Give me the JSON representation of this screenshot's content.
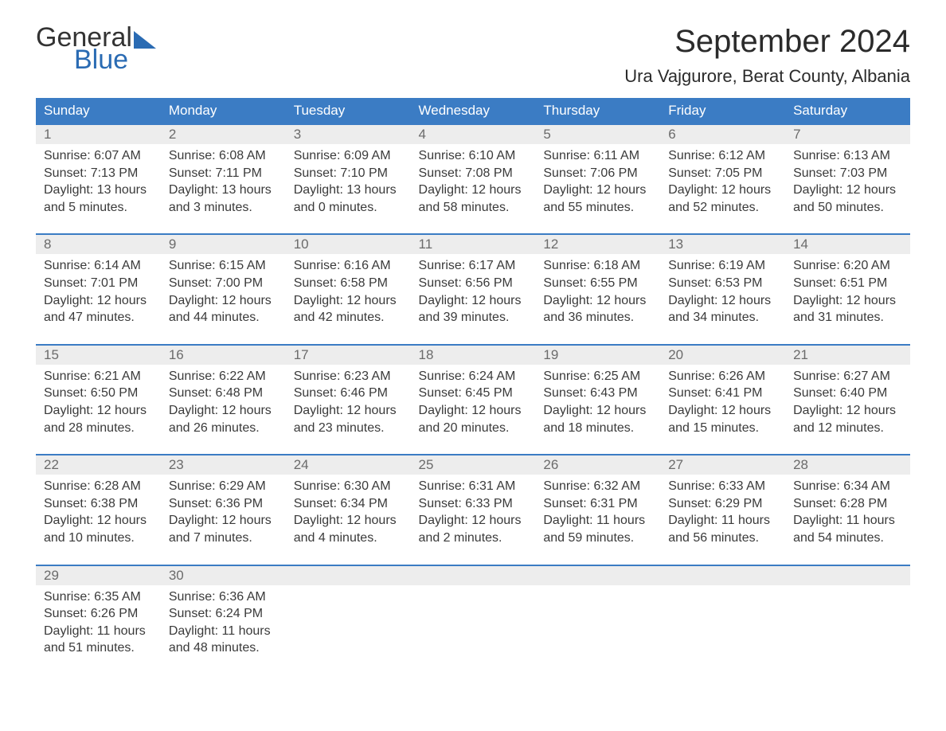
{
  "logo": {
    "word1": "General",
    "word2": "Blue",
    "text_color": "#333333",
    "accent_color": "#2a6bb3"
  },
  "header": {
    "month_title": "September 2024",
    "location": "Ura Vajgurore, Berat County, Albania",
    "title_color": "#2b2b2b",
    "title_fontsize": 40,
    "location_fontsize": 22
  },
  "calendar": {
    "header_bg": "#3b7cc4",
    "header_text_color": "#ffffff",
    "daynum_bg": "#ededed",
    "daynum_border": "#3b7cc4",
    "daynum_color": "#6b6b6b",
    "body_text_color": "#3a3a3a",
    "body_fontsize": 16,
    "days_of_week": [
      "Sunday",
      "Monday",
      "Tuesday",
      "Wednesday",
      "Thursday",
      "Friday",
      "Saturday"
    ],
    "weeks": [
      [
        {
          "num": "1",
          "sunrise": "Sunrise: 6:07 AM",
          "sunset": "Sunset: 7:13 PM",
          "daylight1": "Daylight: 13 hours",
          "daylight2": "and 5 minutes."
        },
        {
          "num": "2",
          "sunrise": "Sunrise: 6:08 AM",
          "sunset": "Sunset: 7:11 PM",
          "daylight1": "Daylight: 13 hours",
          "daylight2": "and 3 minutes."
        },
        {
          "num": "3",
          "sunrise": "Sunrise: 6:09 AM",
          "sunset": "Sunset: 7:10 PM",
          "daylight1": "Daylight: 13 hours",
          "daylight2": "and 0 minutes."
        },
        {
          "num": "4",
          "sunrise": "Sunrise: 6:10 AM",
          "sunset": "Sunset: 7:08 PM",
          "daylight1": "Daylight: 12 hours",
          "daylight2": "and 58 minutes."
        },
        {
          "num": "5",
          "sunrise": "Sunrise: 6:11 AM",
          "sunset": "Sunset: 7:06 PM",
          "daylight1": "Daylight: 12 hours",
          "daylight2": "and 55 minutes."
        },
        {
          "num": "6",
          "sunrise": "Sunrise: 6:12 AM",
          "sunset": "Sunset: 7:05 PM",
          "daylight1": "Daylight: 12 hours",
          "daylight2": "and 52 minutes."
        },
        {
          "num": "7",
          "sunrise": "Sunrise: 6:13 AM",
          "sunset": "Sunset: 7:03 PM",
          "daylight1": "Daylight: 12 hours",
          "daylight2": "and 50 minutes."
        }
      ],
      [
        {
          "num": "8",
          "sunrise": "Sunrise: 6:14 AM",
          "sunset": "Sunset: 7:01 PM",
          "daylight1": "Daylight: 12 hours",
          "daylight2": "and 47 minutes."
        },
        {
          "num": "9",
          "sunrise": "Sunrise: 6:15 AM",
          "sunset": "Sunset: 7:00 PM",
          "daylight1": "Daylight: 12 hours",
          "daylight2": "and 44 minutes."
        },
        {
          "num": "10",
          "sunrise": "Sunrise: 6:16 AM",
          "sunset": "Sunset: 6:58 PM",
          "daylight1": "Daylight: 12 hours",
          "daylight2": "and 42 minutes."
        },
        {
          "num": "11",
          "sunrise": "Sunrise: 6:17 AM",
          "sunset": "Sunset: 6:56 PM",
          "daylight1": "Daylight: 12 hours",
          "daylight2": "and 39 minutes."
        },
        {
          "num": "12",
          "sunrise": "Sunrise: 6:18 AM",
          "sunset": "Sunset: 6:55 PM",
          "daylight1": "Daylight: 12 hours",
          "daylight2": "and 36 minutes."
        },
        {
          "num": "13",
          "sunrise": "Sunrise: 6:19 AM",
          "sunset": "Sunset: 6:53 PM",
          "daylight1": "Daylight: 12 hours",
          "daylight2": "and 34 minutes."
        },
        {
          "num": "14",
          "sunrise": "Sunrise: 6:20 AM",
          "sunset": "Sunset: 6:51 PM",
          "daylight1": "Daylight: 12 hours",
          "daylight2": "and 31 minutes."
        }
      ],
      [
        {
          "num": "15",
          "sunrise": "Sunrise: 6:21 AM",
          "sunset": "Sunset: 6:50 PM",
          "daylight1": "Daylight: 12 hours",
          "daylight2": "and 28 minutes."
        },
        {
          "num": "16",
          "sunrise": "Sunrise: 6:22 AM",
          "sunset": "Sunset: 6:48 PM",
          "daylight1": "Daylight: 12 hours",
          "daylight2": "and 26 minutes."
        },
        {
          "num": "17",
          "sunrise": "Sunrise: 6:23 AM",
          "sunset": "Sunset: 6:46 PM",
          "daylight1": "Daylight: 12 hours",
          "daylight2": "and 23 minutes."
        },
        {
          "num": "18",
          "sunrise": "Sunrise: 6:24 AM",
          "sunset": "Sunset: 6:45 PM",
          "daylight1": "Daylight: 12 hours",
          "daylight2": "and 20 minutes."
        },
        {
          "num": "19",
          "sunrise": "Sunrise: 6:25 AM",
          "sunset": "Sunset: 6:43 PM",
          "daylight1": "Daylight: 12 hours",
          "daylight2": "and 18 minutes."
        },
        {
          "num": "20",
          "sunrise": "Sunrise: 6:26 AM",
          "sunset": "Sunset: 6:41 PM",
          "daylight1": "Daylight: 12 hours",
          "daylight2": "and 15 minutes."
        },
        {
          "num": "21",
          "sunrise": "Sunrise: 6:27 AM",
          "sunset": "Sunset: 6:40 PM",
          "daylight1": "Daylight: 12 hours",
          "daylight2": "and 12 minutes."
        }
      ],
      [
        {
          "num": "22",
          "sunrise": "Sunrise: 6:28 AM",
          "sunset": "Sunset: 6:38 PM",
          "daylight1": "Daylight: 12 hours",
          "daylight2": "and 10 minutes."
        },
        {
          "num": "23",
          "sunrise": "Sunrise: 6:29 AM",
          "sunset": "Sunset: 6:36 PM",
          "daylight1": "Daylight: 12 hours",
          "daylight2": "and 7 minutes."
        },
        {
          "num": "24",
          "sunrise": "Sunrise: 6:30 AM",
          "sunset": "Sunset: 6:34 PM",
          "daylight1": "Daylight: 12 hours",
          "daylight2": "and 4 minutes."
        },
        {
          "num": "25",
          "sunrise": "Sunrise: 6:31 AM",
          "sunset": "Sunset: 6:33 PM",
          "daylight1": "Daylight: 12 hours",
          "daylight2": "and 2 minutes."
        },
        {
          "num": "26",
          "sunrise": "Sunrise: 6:32 AM",
          "sunset": "Sunset: 6:31 PM",
          "daylight1": "Daylight: 11 hours",
          "daylight2": "and 59 minutes."
        },
        {
          "num": "27",
          "sunrise": "Sunrise: 6:33 AM",
          "sunset": "Sunset: 6:29 PM",
          "daylight1": "Daylight: 11 hours",
          "daylight2": "and 56 minutes."
        },
        {
          "num": "28",
          "sunrise": "Sunrise: 6:34 AM",
          "sunset": "Sunset: 6:28 PM",
          "daylight1": "Daylight: 11 hours",
          "daylight2": "and 54 minutes."
        }
      ],
      [
        {
          "num": "29",
          "sunrise": "Sunrise: 6:35 AM",
          "sunset": "Sunset: 6:26 PM",
          "daylight1": "Daylight: 11 hours",
          "daylight2": "and 51 minutes."
        },
        {
          "num": "30",
          "sunrise": "Sunrise: 6:36 AM",
          "sunset": "Sunset: 6:24 PM",
          "daylight1": "Daylight: 11 hours",
          "daylight2": "and 48 minutes."
        },
        null,
        null,
        null,
        null,
        null
      ]
    ]
  }
}
